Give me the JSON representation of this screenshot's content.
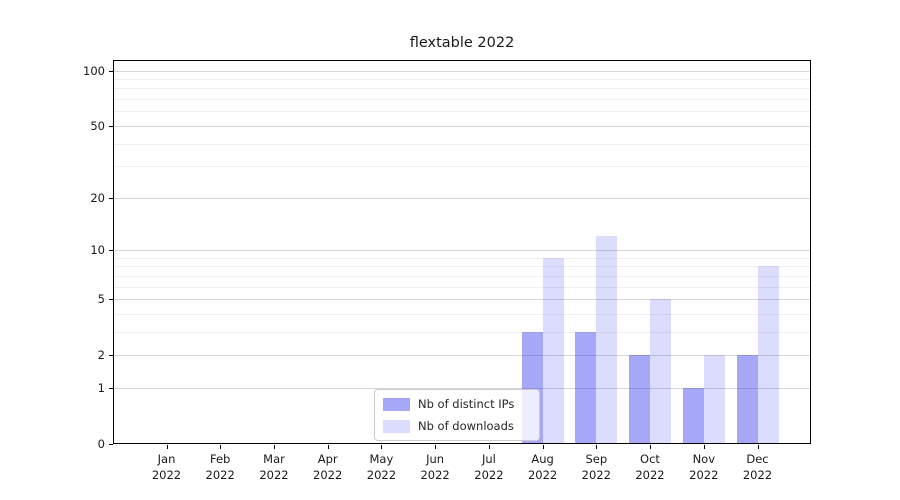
{
  "figure": {
    "title": "flextable 2022"
  },
  "chart_data": {
    "type": "bar",
    "title": "flextable 2022",
    "categories": [
      "Jan",
      "Feb",
      "Mar",
      "Apr",
      "May",
      "Jun",
      "Jul",
      "Aug",
      "Sep",
      "Oct",
      "Nov",
      "Dec"
    ],
    "year": "2022",
    "series": [
      {
        "name": "Nb of distinct IPs",
        "color_hex": "#4444ee",
        "alpha": 0.47,
        "values": [
          0,
          0,
          0,
          0,
          0,
          0,
          0,
          3,
          3,
          2,
          1,
          2
        ]
      },
      {
        "name": "Nb of downloads",
        "color_hex": "#4444ee",
        "alpha": 0.19,
        "values": [
          0,
          0,
          0,
          0,
          0,
          0,
          0,
          9,
          12,
          5,
          2,
          8
        ]
      }
    ],
    "xlabel": "",
    "ylabel": "",
    "yscale": "log1p",
    "ylim": [
      0,
      114
    ],
    "yticks": [
      0,
      1,
      2,
      5,
      10,
      20,
      50,
      100
    ],
    "yticks_minor": [
      3,
      4,
      6,
      7,
      8,
      9,
      30,
      40,
      60,
      70,
      80,
      90
    ],
    "grid": "on",
    "grid_major_color": "#d6d6d6",
    "grid_minor_color": "#efefef",
    "legend_position": "lower center"
  }
}
